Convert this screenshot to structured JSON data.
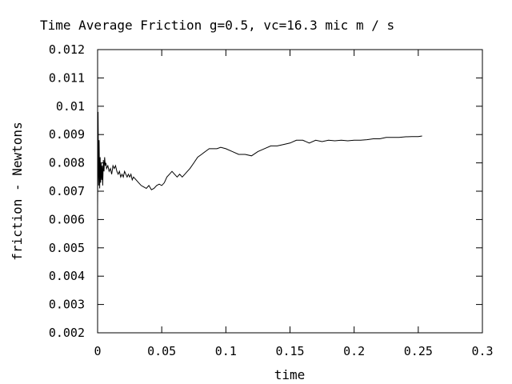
{
  "chart_data": {
    "type": "line",
    "title": "Time Average Friction g=0.5, vc=16.3 mic m / s",
    "xlabel": "time",
    "ylabel": "friction - Newtons",
    "xlim": [
      0,
      0.3
    ],
    "ylim": [
      0.002,
      0.012
    ],
    "x_ticks": [
      "0",
      "0.05",
      "0.1",
      "0.15",
      "0.2",
      "0.25",
      "0.3"
    ],
    "y_ticks": [
      "0.002",
      "0.003",
      "0.004",
      "0.005",
      "0.006",
      "0.007",
      "0.008",
      "0.009",
      "0.01",
      "0.011",
      "0.012"
    ],
    "grid": false,
    "series": [
      {
        "x": [
          0.0,
          0.0004,
          0.0008,
          0.0012,
          0.0016,
          0.002,
          0.0024,
          0.0028,
          0.0032,
          0.0036,
          0.004,
          0.0045,
          0.005,
          0.0055,
          0.006,
          0.0065,
          0.007,
          0.008,
          0.009,
          0.01,
          0.011,
          0.012,
          0.013,
          0.014,
          0.015,
          0.016,
          0.017,
          0.018,
          0.019,
          0.02,
          0.021,
          0.022,
          0.023,
          0.024,
          0.025,
          0.026,
          0.027,
          0.028,
          0.03,
          0.032,
          0.034,
          0.036,
          0.038,
          0.04,
          0.042,
          0.044,
          0.046,
          0.048,
          0.05,
          0.052,
          0.054,
          0.056,
          0.058,
          0.06,
          0.062,
          0.064,
          0.066,
          0.068,
          0.07,
          0.072,
          0.075,
          0.078,
          0.081,
          0.084,
          0.087,
          0.09,
          0.093,
          0.096,
          0.1,
          0.105,
          0.11,
          0.115,
          0.12,
          0.125,
          0.13,
          0.135,
          0.14,
          0.145,
          0.15,
          0.155,
          0.16,
          0.165,
          0.17,
          0.175,
          0.18,
          0.185,
          0.19,
          0.195,
          0.2,
          0.205,
          0.21,
          0.215,
          0.22,
          0.225,
          0.23,
          0.235,
          0.24,
          0.245,
          0.25,
          0.253
        ],
        "y": [
          0.0065,
          0.0098,
          0.0072,
          0.0088,
          0.0071,
          0.0082,
          0.0073,
          0.008,
          0.0074,
          0.0079,
          0.0072,
          0.0081,
          0.0077,
          0.0082,
          0.0079,
          0.008,
          0.0078,
          0.0079,
          0.0077,
          0.0078,
          0.0076,
          0.0079,
          0.0078,
          0.0079,
          0.0077,
          0.0076,
          0.0077,
          0.0075,
          0.0076,
          0.0075,
          0.0077,
          0.0076,
          0.0075,
          0.0076,
          0.0075,
          0.0076,
          0.0074,
          0.0075,
          0.0074,
          0.0073,
          0.0072,
          0.00715,
          0.0071,
          0.0072,
          0.00705,
          0.0071,
          0.0072,
          0.00725,
          0.0072,
          0.0073,
          0.0075,
          0.0076,
          0.0077,
          0.0076,
          0.0075,
          0.0076,
          0.0075,
          0.0076,
          0.0077,
          0.0078,
          0.008,
          0.0082,
          0.0083,
          0.0084,
          0.0085,
          0.0085,
          0.0085,
          0.00855,
          0.0085,
          0.0084,
          0.0083,
          0.0083,
          0.00825,
          0.0084,
          0.0085,
          0.0086,
          0.0086,
          0.00865,
          0.0087,
          0.0088,
          0.0088,
          0.0087,
          0.0088,
          0.00875,
          0.0088,
          0.00878,
          0.0088,
          0.00878,
          0.0088,
          0.0088,
          0.00882,
          0.00885,
          0.00885,
          0.0089,
          0.0089,
          0.0089,
          0.00892,
          0.00893,
          0.00893,
          0.00895
        ]
      }
    ]
  }
}
